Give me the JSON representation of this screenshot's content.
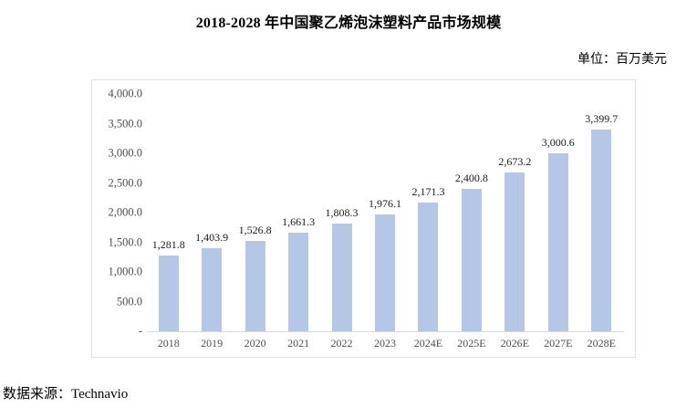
{
  "title": "2018-2028 年中国聚乙烯泡沫塑料产品市场规模",
  "unit_label": "单位：百万美元",
  "source_label": "数据来源：Technavio",
  "chart_data": {
    "type": "bar",
    "title": "2018-2028 年中国聚乙烯泡沫塑料产品市场规模",
    "unit": "百万美元",
    "source": "Technavio",
    "categories": [
      "2018",
      "2019",
      "2020",
      "2021",
      "2022",
      "2023",
      "2024E",
      "2025E",
      "2026E",
      "2027E",
      "2028E"
    ],
    "values": [
      1281.8,
      1403.9,
      1526.8,
      1661.3,
      1808.3,
      1976.1,
      2171.3,
      2400.8,
      2673.2,
      3000.6,
      3399.7
    ],
    "data_labels": [
      "1,281.8",
      "1,403.9",
      "1,526.8",
      "1,661.3",
      "1,808.3",
      "1,976.1",
      "2,171.3",
      "2,400.8",
      "2,673.2",
      "3,000.6",
      "3,399.7"
    ],
    "y_ticks": [
      "4,000.0",
      "3,500.0",
      "3,000.0",
      "2,500.0",
      "2,000.0",
      "1,500.0",
      "1,000.0",
      "500.0",
      "-"
    ],
    "y_tick_values": [
      4000,
      3500,
      3000,
      2500,
      2000,
      1500,
      1000,
      500,
      0
    ],
    "ylim": [
      0,
      4000
    ],
    "bar_color": "#b4c7e7",
    "axis_line_color": "#d9d9d9",
    "grid": false,
    "legend": false
  }
}
